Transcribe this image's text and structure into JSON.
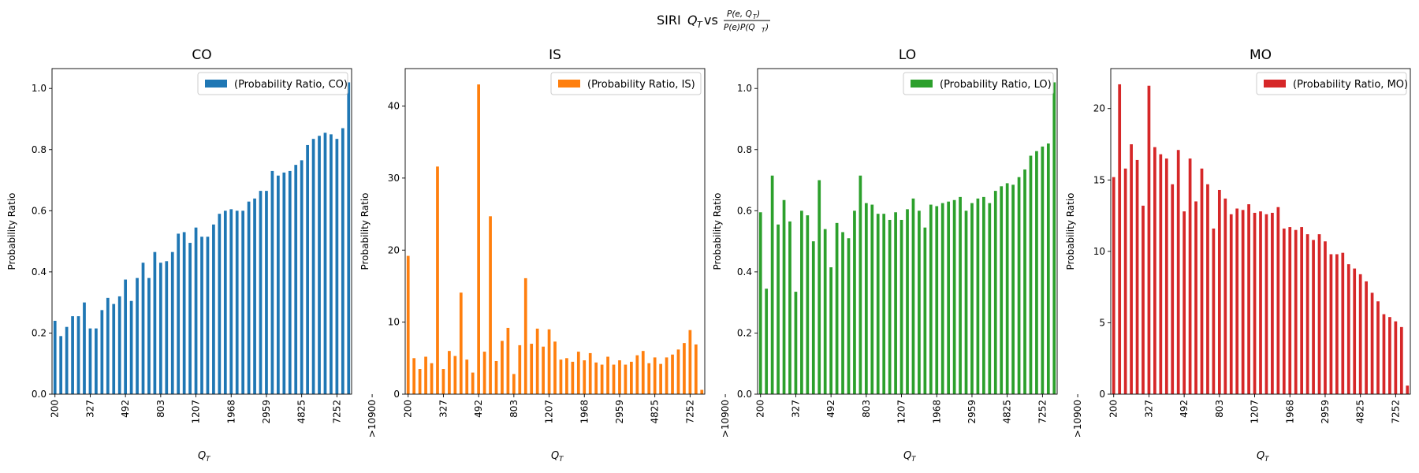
{
  "figure": {
    "title_prefix": "SIRI ",
    "title_q": "Q",
    "title_q_sub": "T",
    "title_vs": " vs ",
    "title_frac_num": "P(e, Q",
    "title_frac_num_sub": "T",
    "title_frac_num_close": ")",
    "title_frac_den": "P(e)P(Q",
    "title_frac_den_sub": "T",
    "title_frac_den_close": ")"
  },
  "chart_data": [
    {
      "type": "bar",
      "title": "CO",
      "color": "#1f77b4",
      "legend": "(Probability Ratio, CO)",
      "legend_position": "upper right",
      "ylabel": "Probability Ratio",
      "xlabel_main": "Q",
      "xlabel_sub": "T",
      "ylim": [
        0,
        1.065
      ],
      "yticks": [
        0.0,
        0.2,
        0.4,
        0.6,
        0.8,
        1.0
      ],
      "ytick_labels": [
        "0.0",
        "0.2",
        "0.4",
        "0.6",
        "0.8",
        "1.0"
      ],
      "xtick_indices": [
        0,
        6,
        12,
        18,
        24,
        30,
        36,
        42,
        48,
        54
      ],
      "xtick_labels": [
        "200",
        "327",
        "492",
        "803",
        "1207",
        "1968",
        "2959",
        "4825",
        "7252",
        ">10900"
      ],
      "values": [
        0.24,
        0.19,
        0.22,
        0.255,
        0.255,
        0.3,
        0.215,
        0.215,
        0.275,
        0.315,
        0.295,
        0.32,
        0.375,
        0.305,
        0.38,
        0.43,
        0.38,
        0.465,
        0.43,
        0.435,
        0.465,
        0.525,
        0.53,
        0.495,
        0.545,
        0.515,
        0.515,
        0.555,
        0.59,
        0.6,
        0.605,
        0.6,
        0.6,
        0.63,
        0.64,
        0.665,
        0.665,
        0.73,
        0.715,
        0.725,
        0.73,
        0.75,
        0.765,
        0.815,
        0.835,
        0.845,
        0.855,
        0.85,
        0.835,
        0.87,
        1.02
      ]
    },
    {
      "type": "bar",
      "title": "IS",
      "color": "#ff7f0e",
      "legend": "(Probability Ratio, IS)",
      "legend_position": "upper right",
      "ylabel": "Probability Ratio",
      "xlabel_main": "Q",
      "xlabel_sub": "T",
      "ylim": [
        0,
        45.2
      ],
      "yticks": [
        0,
        10,
        20,
        30,
        40
      ],
      "ytick_labels": [
        "0",
        "10",
        "20",
        "30",
        "40"
      ],
      "xtick_indices": [
        0,
        6,
        12,
        18,
        24,
        30,
        36,
        42,
        48,
        54
      ],
      "xtick_labels": [
        "200",
        "327",
        "492",
        "803",
        "1207",
        "1968",
        "2959",
        "4825",
        "7252",
        ">10900"
      ],
      "values": [
        19.2,
        5.0,
        3.5,
        5.2,
        4.3,
        31.6,
        3.5,
        6.0,
        5.3,
        14.1,
        4.8,
        3.0,
        43.0,
        5.9,
        24.7,
        4.6,
        7.4,
        9.2,
        2.8,
        6.8,
        16.1,
        7.0,
        9.1,
        6.6,
        9.0,
        7.3,
        4.8,
        5.0,
        4.5,
        5.9,
        4.7,
        5.7,
        4.4,
        4.1,
        5.2,
        4.1,
        4.7,
        4.1,
        4.5,
        5.4,
        6.0,
        4.3,
        5.1,
        4.2,
        5.1,
        5.5,
        6.2,
        7.1,
        8.9,
        6.9,
        0.6
      ]
    },
    {
      "type": "bar",
      "title": "LO",
      "color": "#2ca02c",
      "legend": "(Probability Ratio, LO)",
      "legend_position": "upper right",
      "ylabel": "Probability Ratio",
      "xlabel_main": "Q",
      "xlabel_sub": "T",
      "ylim": [
        0,
        1.065
      ],
      "yticks": [
        0.0,
        0.2,
        0.4,
        0.6,
        0.8,
        1.0
      ],
      "ytick_labels": [
        "0.0",
        "0.2",
        "0.4",
        "0.6",
        "0.8",
        "1.0"
      ],
      "xtick_indices": [
        0,
        6,
        12,
        18,
        24,
        30,
        36,
        42,
        48,
        54
      ],
      "xtick_labels": [
        "200",
        "327",
        "492",
        "803",
        "1207",
        "1968",
        "2959",
        "4825",
        "7252",
        ">10900"
      ],
      "values": [
        0.595,
        0.345,
        0.715,
        0.555,
        0.635,
        0.565,
        0.335,
        0.6,
        0.585,
        0.5,
        0.7,
        0.54,
        0.415,
        0.56,
        0.53,
        0.51,
        0.6,
        0.715,
        0.625,
        0.62,
        0.59,
        0.59,
        0.57,
        0.595,
        0.57,
        0.605,
        0.64,
        0.6,
        0.545,
        0.62,
        0.615,
        0.625,
        0.63,
        0.635,
        0.645,
        0.6,
        0.625,
        0.64,
        0.645,
        0.625,
        0.665,
        0.68,
        0.69,
        0.685,
        0.71,
        0.735,
        0.78,
        0.795,
        0.81,
        0.82,
        1.02
      ]
    },
    {
      "type": "bar",
      "title": "MO",
      "color": "#d62728",
      "legend": "(Probability Ratio, MO)",
      "legend_position": "upper right",
      "ylabel": "Probability Ratio",
      "xlabel_main": "Q",
      "xlabel_sub": "T",
      "ylim": [
        0,
        22.8
      ],
      "yticks": [
        0,
        5,
        10,
        15,
        20
      ],
      "ytick_labels": [
        "0",
        "5",
        "10",
        "15",
        "20"
      ],
      "xtick_indices": [
        0,
        6,
        12,
        18,
        24,
        30,
        36,
        42,
        48,
        54
      ],
      "xtick_labels": [
        "200",
        "327",
        "492",
        "803",
        "1207",
        "1968",
        "2959",
        "4825",
        "7252",
        ">10900"
      ],
      "values": [
        15.2,
        21.7,
        15.8,
        17.5,
        16.4,
        13.2,
        21.6,
        17.3,
        16.8,
        16.5,
        14.7,
        17.1,
        12.8,
        16.5,
        13.5,
        15.8,
        14.7,
        11.6,
        14.3,
        13.7,
        12.6,
        13.0,
        12.9,
        13.3,
        12.7,
        12.8,
        12.6,
        12.7,
        13.1,
        11.6,
        11.7,
        11.5,
        11.7,
        11.2,
        10.8,
        11.2,
        10.7,
        9.8,
        9.8,
        9.9,
        9.1,
        8.8,
        8.4,
        7.9,
        7.1,
        6.5,
        5.6,
        5.4,
        5.1,
        4.7,
        0.6
      ]
    }
  ]
}
